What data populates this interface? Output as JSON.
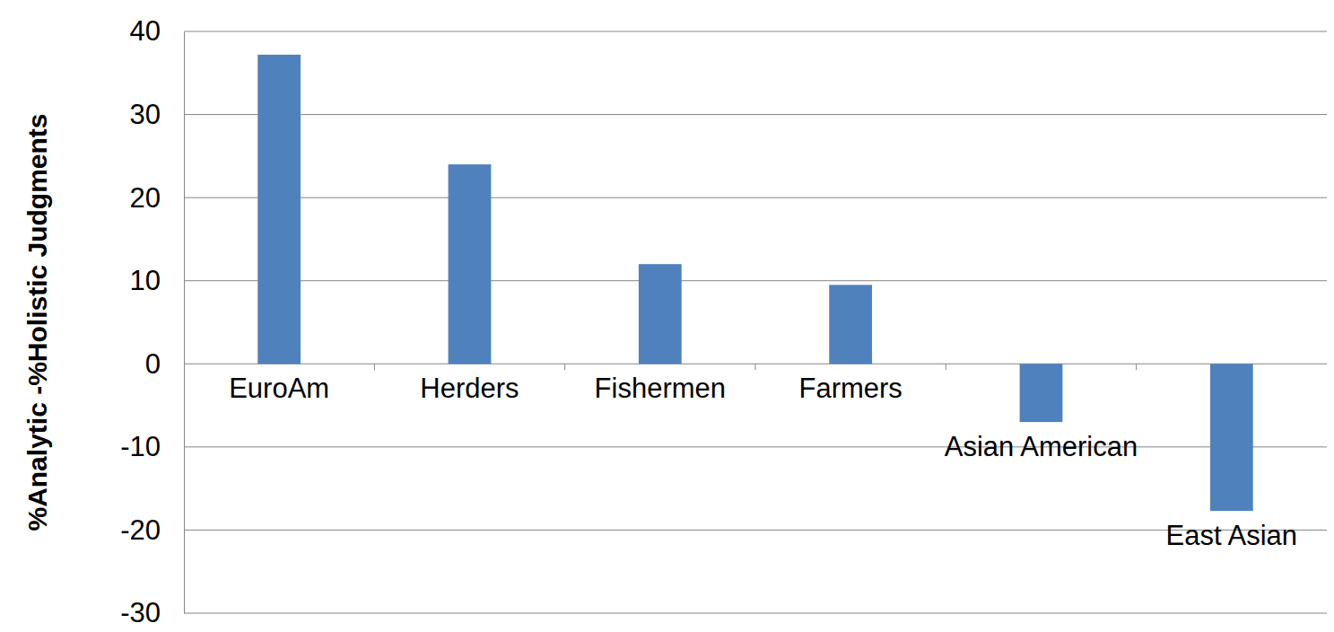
{
  "chart_data": {
    "type": "bar",
    "y_label": "%Analytic -%Holistic Judgments",
    "categories": [
      "EuroAm",
      "Herders",
      "Fishermen",
      "Farmers",
      "Asian American",
      "East Asian"
    ],
    "values": [
      37.2,
      24,
      12,
      9.5,
      -7,
      -17.7
    ],
    "color": "#4f81bd",
    "ylim": [
      -30,
      40
    ],
    "yticks": [
      -30,
      -20,
      -10,
      0,
      10,
      20,
      30,
      40
    ],
    "grid": true
  }
}
